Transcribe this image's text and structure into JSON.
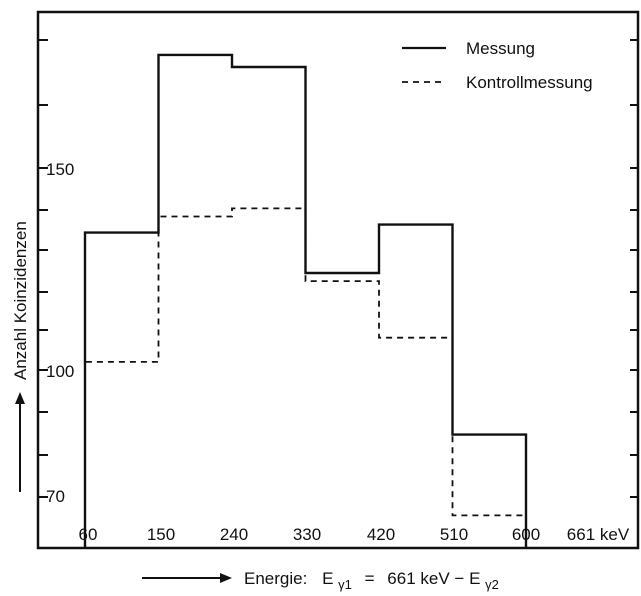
{
  "chart_data": {
    "type": "step",
    "x_ticks": [
      "60",
      "150",
      "240",
      "330",
      "420",
      "510",
      "600",
      "661 keV"
    ],
    "y_ticks": [
      "150",
      "100",
      "70"
    ],
    "ylim": [
      70,
      185
    ],
    "xlabel_prefix": "Energie:",
    "xlabel_formula": {
      "lhs": "E",
      "lhs_sub": "γ1",
      "eq": "=",
      "rhs_value": "661 keV",
      "minus": "−",
      "rhs_symbol": "E",
      "rhs_sub": "γ2"
    },
    "ylabel": "Anzahl Koinzidenzen",
    "legend_position": "top-right",
    "bin_edges": [
      60,
      150,
      240,
      330,
      420,
      510,
      600
    ],
    "series": [
      {
        "name": "Messung",
        "style": "solid",
        "values": [
          134,
          178,
          175,
          124,
          136,
          84
        ]
      },
      {
        "name": "Kontrollmessung",
        "style": "dashed",
        "values": [
          102,
          138,
          140,
          122,
          108,
          64
        ]
      }
    ]
  }
}
